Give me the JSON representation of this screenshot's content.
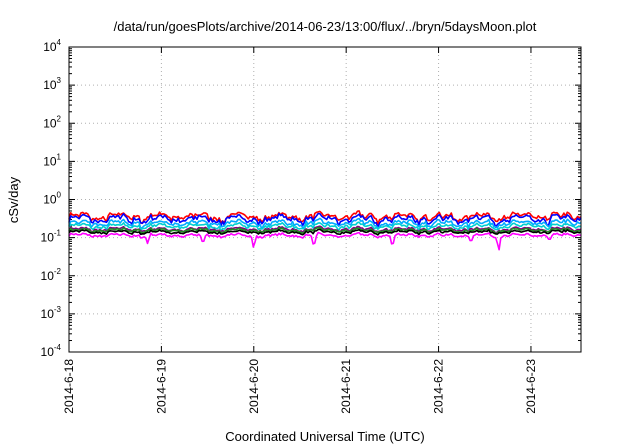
{
  "chart_data": {
    "type": "line",
    "title": "/data/run/goesPlots/archive/2014-06-23/13:00/flux/../bryn/5daysMoon.plot",
    "xlabel": "Coordinated Universal Time (UTC)",
    "ylabel": "cSv/day",
    "yscale": "log",
    "ylim": [
      0.0001,
      10000
    ],
    "yticks": [
      {
        "base": "10",
        "exp": "4"
      },
      {
        "base": "10",
        "exp": "3"
      },
      {
        "base": "10",
        "exp": "2"
      },
      {
        "base": "10",
        "exp": "1"
      },
      {
        "base": "10",
        "exp": "0"
      },
      {
        "base": "10",
        "exp": "-1"
      },
      {
        "base": "10",
        "exp": "-2"
      },
      {
        "base": "10",
        "exp": "-3"
      },
      {
        "base": "10",
        "exp": "-4"
      }
    ],
    "xticks": [
      "2014-6-18",
      "2014-6-19",
      "2014-6-20",
      "2014-6-21",
      "2014-6-22",
      "2014-6-23"
    ],
    "xlim": [
      "2014-06-18",
      "2014-06-23 13:00"
    ],
    "grid": true,
    "series": [
      {
        "color": "#ff0000",
        "base": 0.36,
        "spread": 0.28
      },
      {
        "color": "#0000ff",
        "base": 0.31,
        "spread": 0.28
      },
      {
        "color": "#00aaff",
        "base": 0.24,
        "spread": 0.22
      },
      {
        "color": "#00d0d0",
        "base": 0.2,
        "spread": 0.18
      },
      {
        "color": "#800080",
        "base": 0.165,
        "spread": 0.14
      },
      {
        "color": "#228b22",
        "base": 0.155,
        "spread": 0.13
      },
      {
        "color": "#000000",
        "base": 0.14,
        "spread": 0.12
      },
      {
        "color": "#ff00ff",
        "base": 0.115,
        "spread": 0.12,
        "dips": [
          {
            "day": 0.85,
            "value": 0.07
          },
          {
            "day": 1.45,
            "value": 0.065
          },
          {
            "day": 2.0,
            "value": 0.045
          },
          {
            "day": 2.65,
            "value": 0.05
          },
          {
            "day": 3.5,
            "value": 0.05
          },
          {
            "day": 4.35,
            "value": 0.07
          },
          {
            "day": 4.65,
            "value": 0.035
          },
          {
            "day": 5.2,
            "value": 0.08
          }
        ]
      }
    ]
  }
}
